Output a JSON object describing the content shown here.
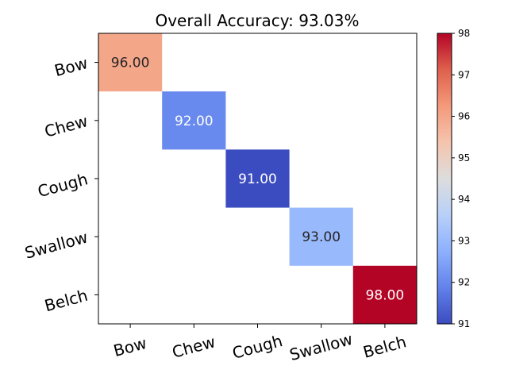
{
  "chart_data": {
    "type": "heatmap",
    "title": "Overall Accuracy: 93.03%",
    "x_labels": [
      "Bow",
      "Chew",
      "Cough",
      "Swallow",
      "Belch"
    ],
    "y_labels": [
      "Bow",
      "Chew",
      "Cough",
      "Swallow",
      "Belch"
    ],
    "cells": [
      {
        "row": 0,
        "col": 0,
        "value": 96.0,
        "label": "96.00"
      },
      {
        "row": 1,
        "col": 1,
        "value": 92.0,
        "label": "92.00"
      },
      {
        "row": 2,
        "col": 2,
        "value": 91.0,
        "label": "91.00"
      },
      {
        "row": 3,
        "col": 3,
        "value": 93.0,
        "label": "93.00"
      },
      {
        "row": 4,
        "col": 4,
        "value": 98.0,
        "label": "98.00"
      }
    ],
    "colormap": "coolwarm",
    "vmin": 91,
    "vmax": 98,
    "colorbar_ticks": [
      "91",
      "92",
      "93",
      "94",
      "95",
      "96",
      "97",
      "98"
    ],
    "off_diagonal": "blank",
    "grid": false
  }
}
